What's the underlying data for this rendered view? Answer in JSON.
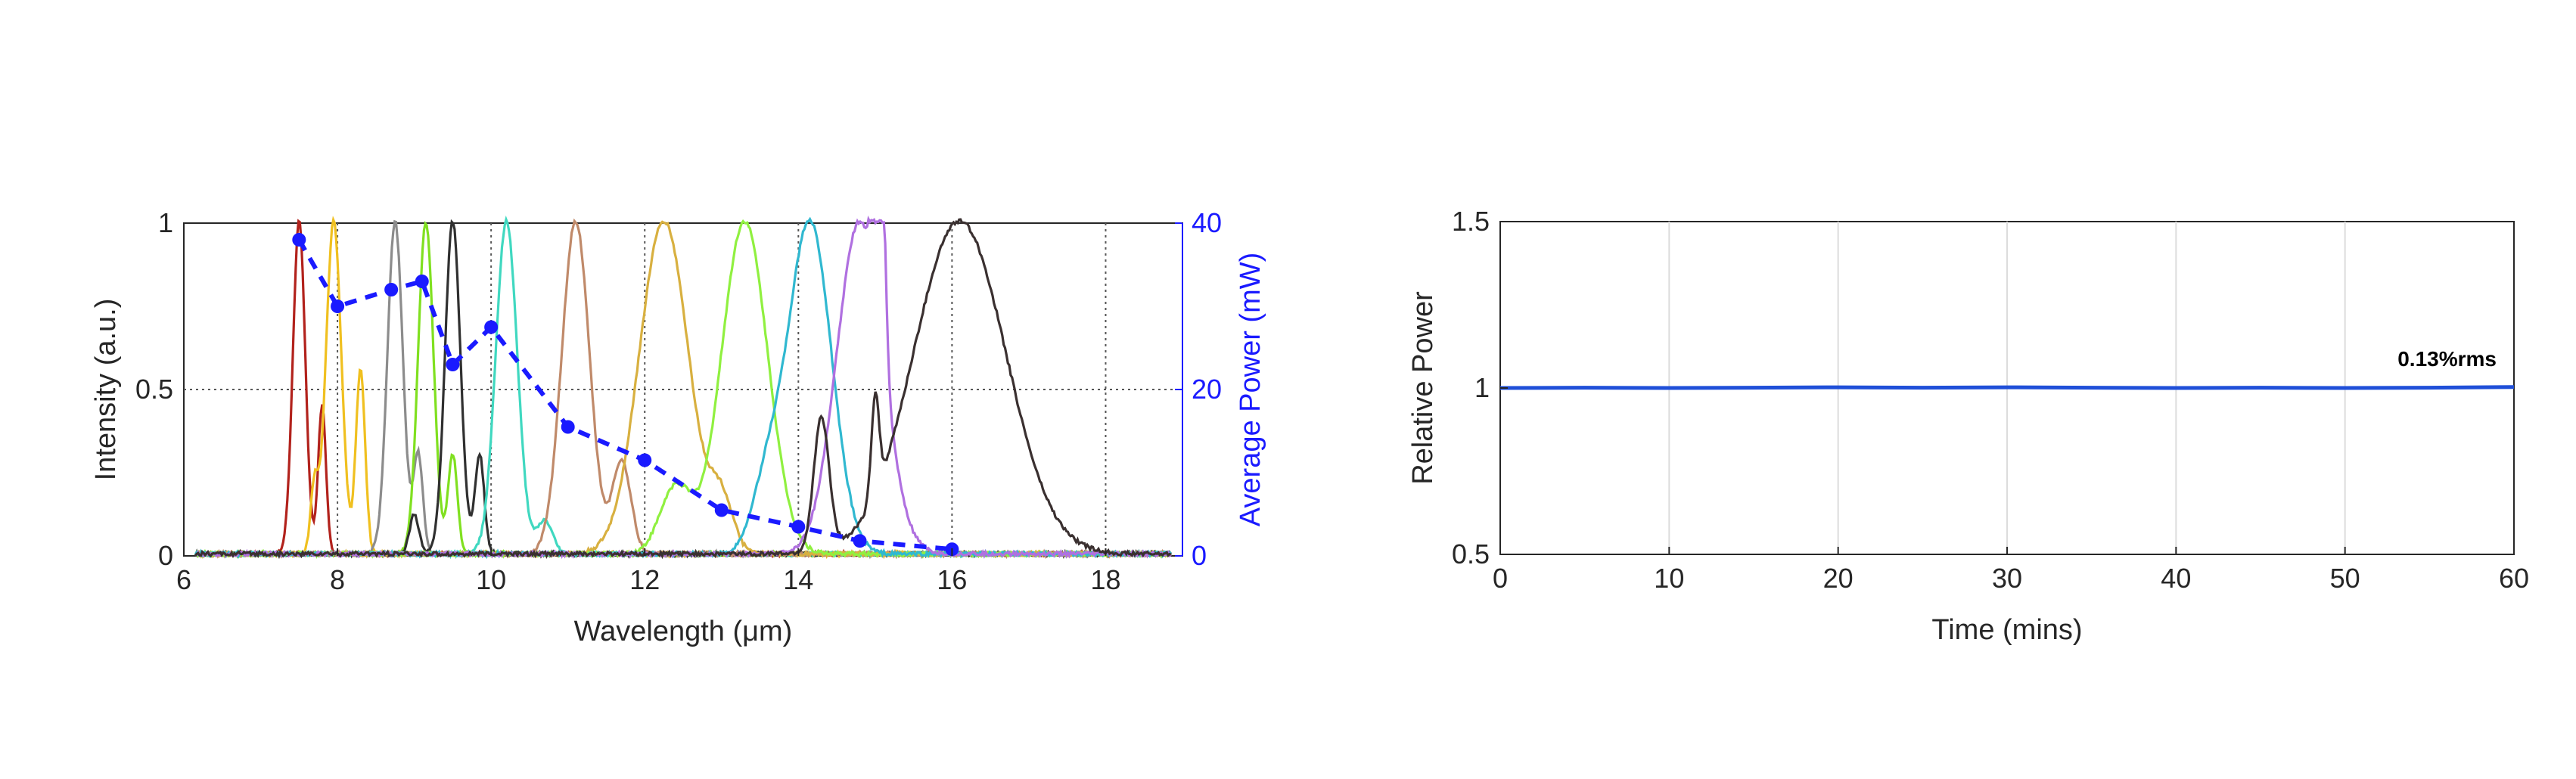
{
  "chart_data": [
    {
      "type": "line",
      "xlabel": "Wavelength (μm)",
      "ylabel": "Intensity (a.u.)",
      "y2label": "Average Power (mW)",
      "xlim": [
        6,
        19
      ],
      "ylim": [
        0,
        1
      ],
      "y2lim": [
        0,
        40
      ],
      "xticks": [
        "6",
        "8",
        "10",
        "12",
        "14",
        "16",
        "18"
      ],
      "xtick_values": [
        6,
        8,
        10,
        12,
        14,
        16,
        18
      ],
      "yticks": [
        "0",
        "0.5",
        "1"
      ],
      "ytick_values": [
        0,
        0.5,
        1
      ],
      "y2ticks": [
        "0",
        "20",
        "40"
      ],
      "y2tick_values": [
        0,
        20,
        40
      ],
      "grid": "dotted",
      "spectra": [
        {
          "center": 7.5,
          "width": 0.08,
          "color": "#b2221c",
          "side": [
            [
              7.8,
              0.45,
              0.05
            ]
          ]
        },
        {
          "center": 7.95,
          "width": 0.1,
          "color": "#f0c020",
          "side": [
            [
              8.3,
              0.55,
              0.06
            ],
            [
              7.7,
              0.2,
              0.05
            ]
          ]
        },
        {
          "center": 8.75,
          "width": 0.1,
          "color": "#8c8c8c",
          "side": [
            [
              9.05,
              0.3,
              0.06
            ]
          ]
        },
        {
          "center": 9.15,
          "width": 0.1,
          "color": "#80e020",
          "side": [
            [
              9.5,
              0.3,
              0.06
            ]
          ]
        },
        {
          "center": 9.5,
          "width": 0.1,
          "color": "#303030",
          "side": [
            [
              9.0,
              0.12,
              0.06
            ],
            [
              9.85,
              0.3,
              0.06
            ]
          ]
        },
        {
          "center": 10.2,
          "width": 0.14,
          "color": "#40d8c0",
          "side": [
            [
              10.7,
              0.1,
              0.1
            ]
          ]
        },
        {
          "center": 11.1,
          "width": 0.18,
          "color": "#c08a6a",
          "side": [
            [
              11.7,
              0.28,
              0.12
            ]
          ]
        },
        {
          "center": 12.25,
          "width": 0.32,
          "color": "#d8b040",
          "side": [
            [
              13.0,
              0.15,
              0.15
            ]
          ]
        },
        {
          "center": 13.3,
          "width": 0.3,
          "color": "#90f040",
          "side": [
            [
              12.4,
              0.2,
              0.2
            ]
          ]
        },
        {
          "center": 14.15,
          "width": 0.28,
          "color": "#30b8d0",
          "side": [
            [
              13.6,
              0.2,
              0.2
            ]
          ]
        },
        {
          "center": 14.8,
          "width": 0.3,
          "color": "#b070e0",
          "side": [
            [
              15.05,
              0.95,
              0.06
            ]
          ]
        },
        {
          "center": 16.1,
          "width": 0.6,
          "color": "#3a3030",
          "side": [
            [
              14.3,
              0.4,
              0.1
            ],
            [
              15.0,
              0.3,
              0.05
            ]
          ]
        }
      ],
      "power": {
        "name": "Average Power (mW)",
        "color": "#1a1aff",
        "x": [
          7.5,
          8.0,
          8.7,
          9.1,
          9.5,
          10.0,
          11.0,
          12.0,
          13.0,
          14.0,
          14.8,
          16.0
        ],
        "y": [
          38,
          30,
          32,
          33,
          23,
          27.5,
          15.5,
          11.5,
          5.5,
          3.5,
          1.8,
          0.8
        ]
      }
    },
    {
      "type": "line",
      "xlabel": "Time (mins)",
      "ylabel": "Relative Power",
      "xlim": [
        0,
        60
      ],
      "ylim": [
        0.5,
        1.5
      ],
      "xticks": [
        "0",
        "10",
        "20",
        "30",
        "40",
        "50",
        "60"
      ],
      "xtick_values": [
        0,
        10,
        20,
        30,
        40,
        50,
        60
      ],
      "yticks": [
        "0.5",
        "1",
        "1.5"
      ],
      "ytick_values": [
        0.5,
        1,
        1.5
      ],
      "grid": "vertical",
      "series": [
        {
          "color": "#1f4fd8",
          "x": [
            0,
            5,
            10,
            15,
            20,
            25,
            30,
            35,
            40,
            45,
            50,
            55,
            60
          ],
          "y": [
            1.0,
            1.001,
            1.0,
            1.001,
            1.002,
            1.001,
            1.002,
            1.001,
            1.0,
            1.001,
            1.0,
            1.001,
            1.003
          ]
        }
      ],
      "annotation": "0.13%rms"
    }
  ]
}
